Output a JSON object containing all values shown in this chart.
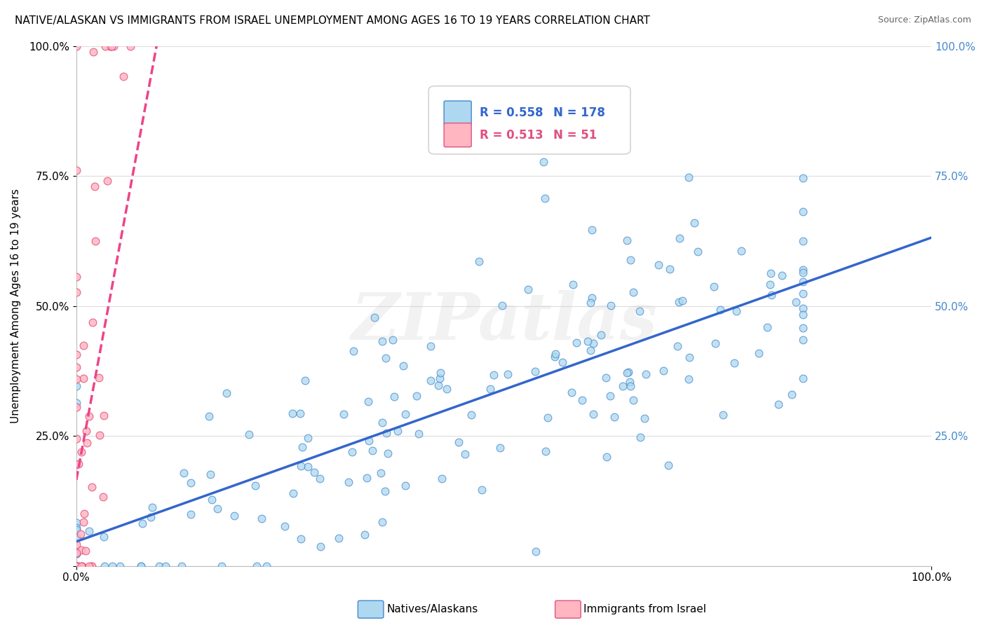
{
  "title": "NATIVE/ALASKAN VS IMMIGRANTS FROM ISRAEL UNEMPLOYMENT AMONG AGES 16 TO 19 YEARS CORRELATION CHART",
  "source": "Source: ZipAtlas.com",
  "ylabel": "Unemployment Among Ages 16 to 19 years",
  "legend_label1": "Natives/Alaskans",
  "legend_label2": "Immigrants from Israel",
  "r1": "0.558",
  "n1": "178",
  "r2": "0.513",
  "n2": "51",
  "color_blue": "#ADD8F0",
  "color_pink": "#FFB6C1",
  "color_blue_dark": "#4488CC",
  "color_pink_dark": "#E05080",
  "color_trendline_blue": "#3366CC",
  "color_trendline_pink": "#EE4488",
  "watermark_text": "ZIPatlas",
  "watermark_color": "#CCCCCC",
  "background": "#FFFFFF",
  "grid_color": "#DDDDDD",
  "right_tick_color": "#4488CC"
}
